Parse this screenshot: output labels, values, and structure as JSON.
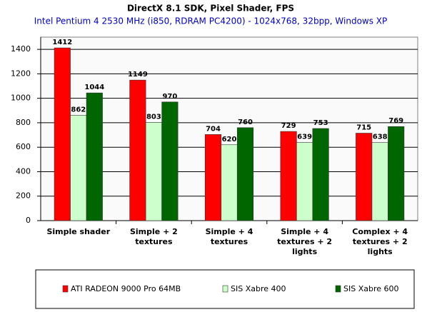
{
  "chart_data": {
    "type": "bar",
    "title": "DirectX 8.1 SDK, Pixel Shader, FPS",
    "subtitle": "Intel Pentium 4 2530 MHz (i850, RDRAM PC4200) - 1024x768, 32bpp, Windows XP",
    "categories": [
      "Simple shader",
      "Simple + 2 textures",
      "Simple + 4 textures",
      "Simple + 4 textures + 2 lights",
      "Complex + 4 textures + 2 lights"
    ],
    "series": [
      {
        "name": "ATI RADEON 9000 Pro 64MB",
        "color": "#ff0000",
        "values": [
          1412,
          1149,
          704,
          729,
          715
        ]
      },
      {
        "name": "SIS Xabre 400",
        "color": "#ccffcc",
        "values": [
          862,
          803,
          620,
          639,
          638
        ]
      },
      {
        "name": "SIS Xabre 600",
        "color": "#006600",
        "values": [
          1044,
          970,
          760,
          753,
          769
        ]
      }
    ],
    "ylim": [
      0,
      1500
    ],
    "yticks": [
      0,
      200,
      400,
      600,
      800,
      1000,
      1200,
      1400
    ],
    "grid": true,
    "legend": "bottom"
  }
}
